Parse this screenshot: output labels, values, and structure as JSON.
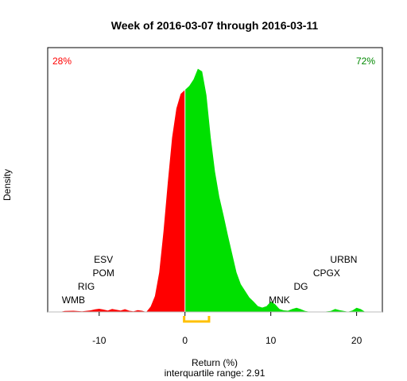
{
  "chart_data": {
    "type": "area",
    "title": "Week of 2016-03-07 through 2016-03-11",
    "xlabel": "Return (%)",
    "ylabel": "Density",
    "subtitle": "interquartile range: 2.91",
    "xlim": [
      -16,
      23
    ],
    "ylim": [
      0,
      0.2
    ],
    "x_ticks": [
      -10,
      0,
      10,
      20
    ],
    "split_at": 0,
    "negative_share_label": "28%",
    "positive_share_label": "72%",
    "negative_color": "#ff0000",
    "positive_color": "#00e000",
    "iqr_color": "#ffc000",
    "iqr_bracket": [
      -0.1,
      2.8
    ],
    "density_x": [
      -14.6,
      -14.0,
      -13.0,
      -12.0,
      -11.0,
      -10.5,
      -10.0,
      -9.5,
      -9.0,
      -8.5,
      -8.0,
      -7.5,
      -7.0,
      -6.5,
      -6.0,
      -5.5,
      -5.0,
      -4.5,
      -4.0,
      -3.5,
      -3.0,
      -2.5,
      -2.0,
      -1.5,
      -1.0,
      -0.5,
      0.0,
      0.5,
      1.0,
      1.5,
      2.0,
      2.5,
      3.0,
      3.5,
      4.0,
      4.5,
      5.0,
      5.5,
      6.0,
      6.5,
      7.0,
      7.5,
      8.0,
      8.5,
      9.0,
      9.5,
      10.0,
      10.5,
      11.0,
      11.5,
      12.0,
      12.5,
      13.0,
      13.5,
      14.0,
      14.5,
      15.0,
      16.0,
      17.0,
      17.5,
      18.0,
      19.0,
      19.5,
      20.0,
      20.5,
      21.0
    ],
    "density_y": [
      0.0,
      0.0007,
      0.0009,
      0.0004,
      0.0012,
      0.0019,
      0.0024,
      0.0018,
      0.0011,
      0.0022,
      0.0016,
      0.0011,
      0.0021,
      0.0009,
      0.0005,
      0.0013,
      0.0009,
      0.0,
      0.004,
      0.012,
      0.03,
      0.061,
      0.098,
      0.132,
      0.154,
      0.165,
      0.168,
      0.171,
      0.176,
      0.184,
      0.182,
      0.164,
      0.132,
      0.106,
      0.087,
      0.073,
      0.058,
      0.044,
      0.03,
      0.021,
      0.016,
      0.011,
      0.0078,
      0.0043,
      0.0033,
      0.0043,
      0.0079,
      0.0058,
      0.0022,
      0.0012,
      0.0009,
      0.0022,
      0.0032,
      0.0021,
      0.0007,
      0.0002,
      0.0,
      0.0,
      0.0007,
      0.0022,
      0.0014,
      0.0002,
      0.0011,
      0.0032,
      0.0021,
      0.0
    ],
    "annotations": [
      {
        "text": "WMB",
        "x": -13
      },
      {
        "text": "RIG",
        "x": -11.5
      },
      {
        "text": "POM",
        "x": -9.5
      },
      {
        "text": "ESV",
        "x": -9.5
      },
      {
        "text": "MNK",
        "x": 11
      },
      {
        "text": "DG",
        "x": 13.5
      },
      {
        "text": "CPGX",
        "x": 16.5
      },
      {
        "text": "URBN",
        "x": 18.5
      }
    ]
  }
}
